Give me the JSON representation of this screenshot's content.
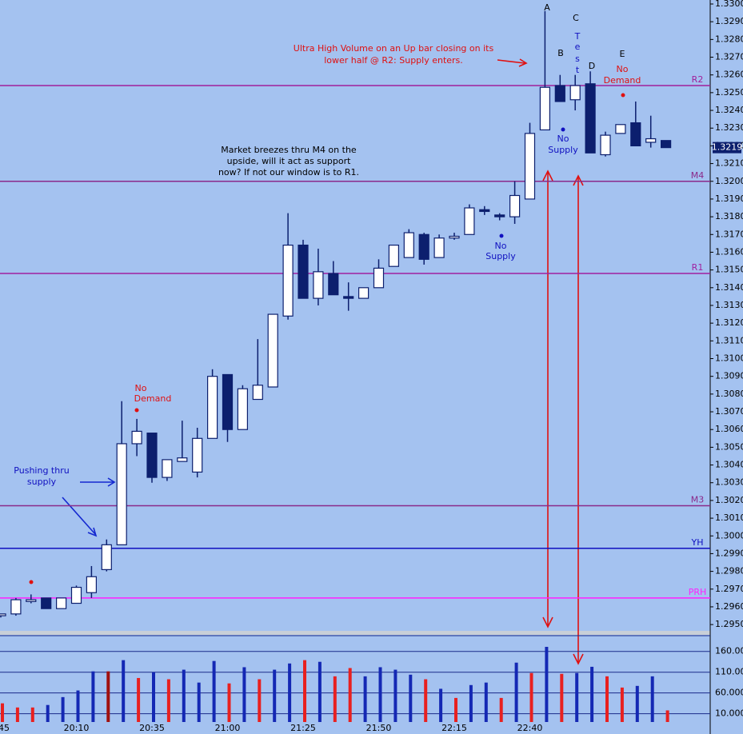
{
  "chart_data": {
    "type": "candlestick",
    "categories": [
      "45",
      null,
      null,
      null,
      null,
      "20:10",
      null,
      null,
      null,
      null,
      "20:35",
      null,
      null,
      null,
      null,
      "21:00",
      null,
      null,
      null,
      null,
      "21:25",
      null,
      null,
      null,
      null,
      "21:50",
      null,
      null,
      null,
      null,
      "22:15",
      null,
      null,
      null,
      null,
      "22:40",
      null,
      null,
      null,
      null,
      null,
      null,
      null,
      null,
      null
    ],
    "open": [
      1.2955,
      1.2956,
      1.2963,
      1.2965,
      1.2959,
      1.2962,
      1.2968,
      1.2981,
      1.2995,
      1.3052,
      1.3058,
      1.3033,
      1.3042,
      1.3036,
      1.3055,
      1.3091,
      1.306,
      1.3077,
      1.3084,
      1.3124,
      1.3164,
      1.3134,
      1.3148,
      1.3135,
      1.3134,
      1.314,
      1.3152,
      1.3157,
      1.317,
      1.3157,
      1.3168,
      1.317,
      1.3184,
      1.3181,
      1.318,
      1.319,
      1.3229,
      1.3254,
      1.3246,
      1.3255,
      1.3215,
      1.3227,
      1.3233,
      1.3222,
      1.3223
    ],
    "high": [
      1.2956,
      1.2965,
      1.2967,
      1.2965,
      1.2965,
      1.2972,
      1.2983,
      1.2998,
      1.3076,
      1.3066,
      1.3058,
      1.3043,
      1.3065,
      1.3061,
      1.3094,
      1.3091,
      1.3085,
      1.3111,
      1.3125,
      1.3182,
      1.3167,
      1.3162,
      1.3155,
      1.3143,
      1.314,
      1.3156,
      1.3164,
      1.3173,
      1.3171,
      1.317,
      1.3171,
      1.3187,
      1.3186,
      1.3182,
      1.32,
      1.3233,
      1.3296,
      1.326,
      1.326,
      1.3262,
      1.3228,
      1.3232,
      1.3245,
      1.3237,
      1.3223
    ],
    "low": [
      1.2954,
      1.2955,
      1.2962,
      1.2959,
      1.2959,
      1.2962,
      1.2965,
      1.298,
      1.2995,
      1.3045,
      1.303,
      1.3031,
      1.3042,
      1.3033,
      1.3055,
      1.3053,
      1.306,
      1.3077,
      1.3084,
      1.3122,
      1.3134,
      1.313,
      1.3136,
      1.3127,
      1.3134,
      1.314,
      1.3152,
      1.3157,
      1.3153,
      1.3157,
      1.3167,
      1.317,
      1.3181,
      1.3178,
      1.3176,
      1.319,
      1.3229,
      1.3245,
      1.324,
      1.3216,
      1.3214,
      1.3227,
      1.322,
      1.3219,
      1.3219
    ],
    "close": [
      1.2956,
      1.2964,
      1.2964,
      1.2959,
      1.2965,
      1.2971,
      1.2977,
      1.2995,
      1.3052,
      1.3059,
      1.3033,
      1.3043,
      1.3044,
      1.3055,
      1.309,
      1.306,
      1.3083,
      1.3085,
      1.3125,
      1.3164,
      1.3134,
      1.3149,
      1.3136,
      1.3134,
      1.314,
      1.3151,
      1.3164,
      1.3171,
      1.3156,
      1.3168,
      1.3169,
      1.3185,
      1.3183,
      1.318,
      1.3192,
      1.3227,
      1.3253,
      1.3245,
      1.3254,
      1.3216,
      1.3226,
      1.3232,
      1.322,
      1.3224,
      1.3219
    ],
    "up_color": "#ffffff",
    "down_color": "#0c1f6e",
    "edge_color": "#0c1f6e",
    "ylim": [
      1.2946,
      1.33
    ],
    "yticks": [
      {
        "value": 1.295,
        "label": "1.2950"
      },
      {
        "value": 1.296,
        "label": "1.2960"
      },
      {
        "value": 1.297,
        "label": "1.2970"
      },
      {
        "value": 1.298,
        "label": "1.2980"
      },
      {
        "value": 1.299,
        "label": "1.2990"
      },
      {
        "value": 1.3,
        "label": "1.3000"
      },
      {
        "value": 1.301,
        "label": "1.3010"
      },
      {
        "value": 1.302,
        "label": "1.3020"
      },
      {
        "value": 1.303,
        "label": "1.3030"
      },
      {
        "value": 1.304,
        "label": "1.3040"
      },
      {
        "value": 1.305,
        "label": "1.3050"
      },
      {
        "value": 1.306,
        "label": "1.3060"
      },
      {
        "value": 1.307,
        "label": "1.3070"
      },
      {
        "value": 1.308,
        "label": "1.3080"
      },
      {
        "value": 1.309,
        "label": "1.3090"
      },
      {
        "value": 1.31,
        "label": "1.3100"
      },
      {
        "value": 1.311,
        "label": "1.3110"
      },
      {
        "value": 1.312,
        "label": "1.3120"
      },
      {
        "value": 1.313,
        "label": "1.3130"
      },
      {
        "value": 1.314,
        "label": "1.3140"
      },
      {
        "value": 1.315,
        "label": "1.3150"
      },
      {
        "value": 1.316,
        "label": "1.3160"
      },
      {
        "value": 1.317,
        "label": "1.3170"
      },
      {
        "value": 1.318,
        "label": "1.3180"
      },
      {
        "value": 1.319,
        "label": "1.3190"
      },
      {
        "value": 1.32,
        "label": "1.3200"
      },
      {
        "value": 1.321,
        "label": "1.3210"
      },
      {
        "value": 1.322,
        "label": "1.3220"
      },
      {
        "value": 1.323,
        "label": "1.3230"
      },
      {
        "value": 1.324,
        "label": "1.3240"
      },
      {
        "value": 1.325,
        "label": "1.3250"
      },
      {
        "value": 1.326,
        "label": "1.3260"
      },
      {
        "value": 1.327,
        "label": "1.3270"
      },
      {
        "value": 1.328,
        "label": "1.3280"
      },
      {
        "value": 1.329,
        "label": "1.3290"
      },
      {
        "value": 1.33,
        "label": "1.3300"
      }
    ],
    "last_price": 1.3219,
    "levels": [
      {
        "name": "R2",
        "value": 1.3254,
        "color": "#a0209a"
      },
      {
        "name": "M4",
        "value": 1.32,
        "color": "#8a2a8a"
      },
      {
        "name": "R1",
        "value": 1.3148,
        "color": "#a020a0"
      },
      {
        "name": "M3",
        "value": 1.3017,
        "color": "#8a2a8a"
      },
      {
        "name": "YH",
        "value": 1.2993,
        "color": "#1010c0"
      },
      {
        "name": "PRH",
        "value": 1.2965,
        "color": "#ff20ff"
      }
    ],
    "volume": {
      "values": [
        35000,
        25000,
        25000,
        31000,
        50000,
        66000,
        112000,
        112000,
        139000,
        96000,
        110000,
        93000,
        116000,
        85000,
        137000,
        83000,
        122000,
        93000,
        116000,
        131000,
        139000,
        135000,
        100000,
        120000,
        100000,
        122000,
        116000,
        104000,
        93000,
        70000,
        48000,
        79000,
        85000,
        48000,
        133000,
        108000,
        171000,
        106000,
        108000,
        123000,
        100000,
        73000,
        77000,
        100000,
        18000
      ],
      "colors": [
        "#e82020",
        "#e82020",
        "#e82020",
        "#1428b4",
        "#1428b4",
        "#1428b4",
        "#1428b4",
        "#a01010",
        "#1428b4",
        "#e82020",
        "#1428b4",
        "#e82020",
        "#1428b4",
        "#1428b4",
        "#1428b4",
        "#e82020",
        "#1428b4",
        "#e82020",
        "#1428b4",
        "#1428b4",
        "#e82020",
        "#1428b4",
        "#e82020",
        "#e82020",
        "#1428b4",
        "#1428b4",
        "#1428b4",
        "#1428b4",
        "#e82020",
        "#1428b4",
        "#e82020",
        "#1428b4",
        "#1428b4",
        "#e82020",
        "#1428b4",
        "#e82020",
        "#1428b4",
        "#e82020",
        "#1428b4",
        "#1428b4",
        "#e82020",
        "#e82020",
        "#1428b4",
        "#1428b4",
        "#e82020"
      ],
      "ylim": [
        -10000,
        198000
      ],
      "yticks": [
        {
          "value": 10000,
          "label": "10.000"
        },
        {
          "value": 60000,
          "label": "60.000"
        },
        {
          "value": 110000,
          "label": "110.000"
        },
        {
          "value": 160000,
          "label": "160.000"
        }
      ]
    },
    "annotations": [
      {
        "text": "Ultra High Volume  on an Up bar closing  on its",
        "color": "#e01010"
      },
      {
        "text": "lower half @ R2: Supply enters.",
        "color": "#e01010"
      },
      {
        "text": "Market breezes thru M4 on the",
        "color": "#000000"
      },
      {
        "text": "upside, will it act as support",
        "color": "#000000"
      },
      {
        "text": "now? If not our window is to R1.",
        "color": "#000000"
      },
      {
        "text": "No",
        "color": "#e01010"
      },
      {
        "text": "Demand",
        "color": "#e01010"
      },
      {
        "text": "Pushing thru",
        "color": "#1010c0"
      },
      {
        "text": "supply",
        "color": "#1010c0"
      },
      {
        "text": "No",
        "color": "#1010c0"
      },
      {
        "text": "Supply",
        "color": "#1010c0"
      },
      {
        "text": "No",
        "color": "#1010c0"
      },
      {
        "text": "Supply",
        "color": "#1010c0"
      },
      {
        "text": "A",
        "color": "#000000"
      },
      {
        "text": "B",
        "color": "#000000"
      },
      {
        "text": "C",
        "color": "#000000"
      },
      {
        "text": "D",
        "color": "#000000"
      },
      {
        "text": "E",
        "color": "#000000"
      },
      {
        "text": "T",
        "color": "#1010c0"
      },
      {
        "text": "e",
        "color": "#1010c0"
      },
      {
        "text": "s",
        "color": "#1010c0"
      },
      {
        "text": "t",
        "color": "#1010c0"
      },
      {
        "text": "No",
        "color": "#e01010"
      },
      {
        "text": "Demand",
        "color": "#e01010"
      }
    ]
  }
}
